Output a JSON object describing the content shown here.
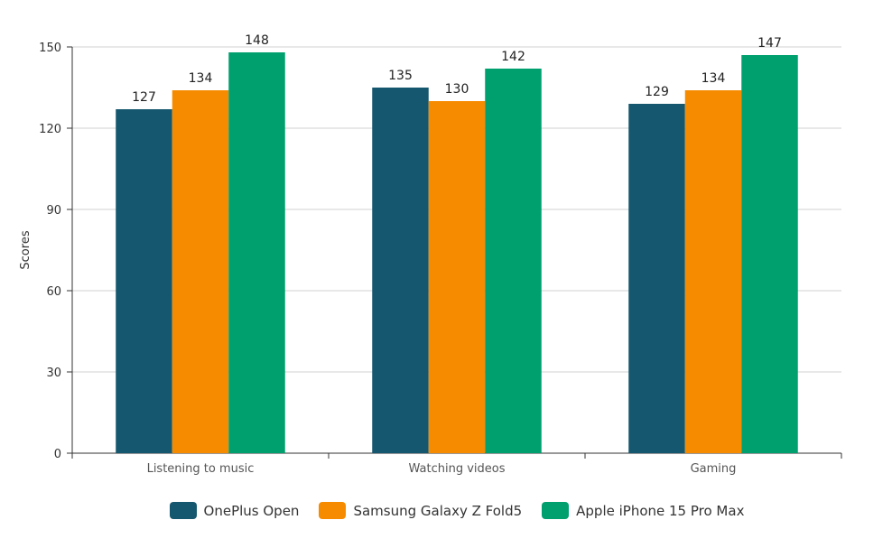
{
  "chart_data": {
    "type": "bar",
    "title": "",
    "xlabel": "",
    "ylabel": "Scores",
    "ylim": [
      0,
      150
    ],
    "yticks": [
      "0",
      "30",
      "60",
      "90",
      "120",
      "150"
    ],
    "grid": true,
    "legend_position": "bottom",
    "categories": [
      "Listening to music",
      "Watching videos",
      "Gaming"
    ],
    "series": [
      {
        "name": "OnePlus Open",
        "color": "#14576e",
        "values": [
          127,
          135,
          129
        ]
      },
      {
        "name": "Samsung Galaxy Z Fold5",
        "color": "#f68b00",
        "values": [
          134,
          130,
          134
        ]
      },
      {
        "name": "Apple iPhone 15 Pro Max",
        "color": "#00a06e",
        "values": [
          148,
          142,
          147
        ]
      }
    ]
  }
}
